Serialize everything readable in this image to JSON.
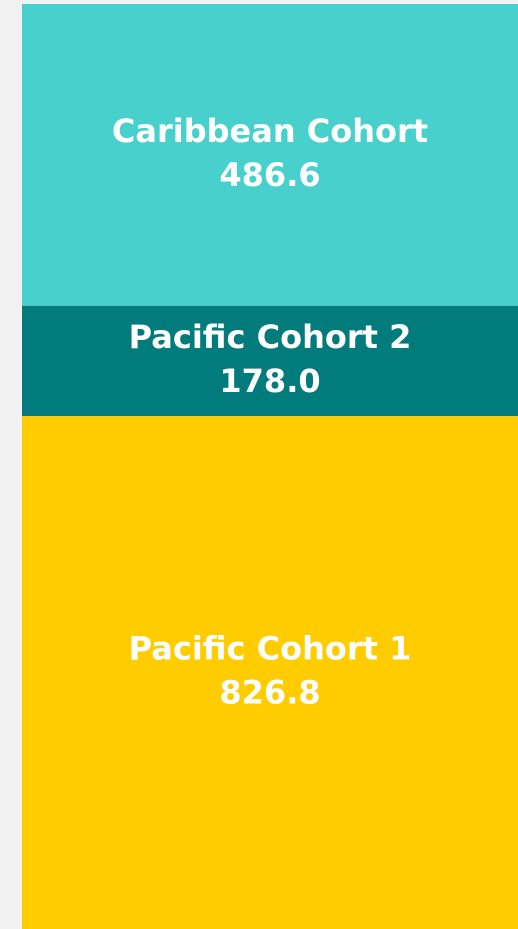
{
  "chart_data": {
    "type": "treemap",
    "categories": [
      "Caribbean Cohort",
      "Pacific Cohort 2",
      "Pacific Cohort 1"
    ],
    "values": [
      486.6,
      178.0,
      826.8
    ],
    "value_labels": [
      "486.6",
      "178.0",
      "826.8"
    ],
    "colors": [
      "#48d1cc",
      "#017b7b",
      "#ffcc00"
    ]
  }
}
